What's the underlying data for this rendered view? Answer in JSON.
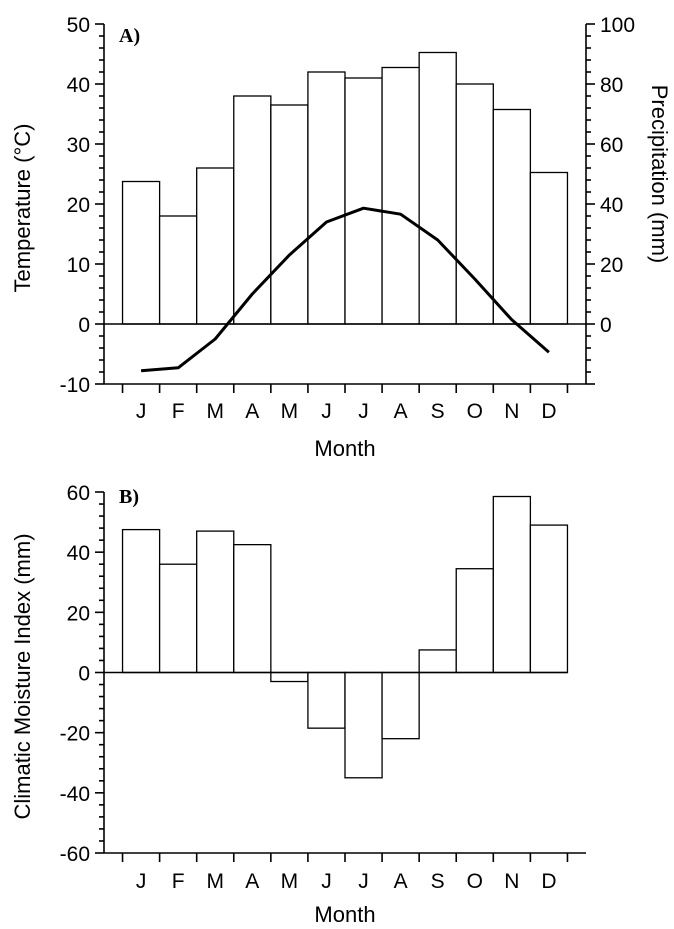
{
  "chart_data": [
    {
      "panel": "A)",
      "type": "bar+line",
      "categories": [
        "J",
        "F",
        "M",
        "A",
        "M",
        "J",
        "J",
        "A",
        "S",
        "O",
        "N",
        "D"
      ],
      "xlabel": "Month",
      "ylabel_left": "Temperature (°C)",
      "ylabel_right": "Precipitation (mm)",
      "ylim_left": [
        -10,
        50
      ],
      "ylim_right": [
        -20,
        100
      ],
      "yticks_left": [
        "-10",
        "0",
        "10",
        "20",
        "30",
        "40",
        "50"
      ],
      "yticks_right": [
        "0",
        "20",
        "40",
        "60",
        "80",
        "100"
      ],
      "precipitation": [
        47.5,
        36,
        52,
        76,
        73,
        84,
        82,
        85.5,
        90.5,
        80,
        71.5,
        50.5
      ],
      "temperature": [
        -7.8,
        -7.3,
        -2.5,
        5,
        11.5,
        17,
        19.3,
        18.3,
        14,
        7.5,
        0.7,
        -4.7
      ],
      "grid": false
    },
    {
      "panel": "B)",
      "type": "bar",
      "categories": [
        "J",
        "F",
        "M",
        "A",
        "M",
        "J",
        "J",
        "A",
        "S",
        "O",
        "N",
        "D"
      ],
      "xlabel": "Month",
      "ylabel": "Climatic Moisture Index (mm)",
      "ylim": [
        -60,
        60
      ],
      "yticks": [
        "-60",
        "-40",
        "-20",
        "0",
        "20",
        "40",
        "60"
      ],
      "values": [
        47.5,
        36,
        47,
        42.5,
        -3,
        -18.5,
        -35,
        -22,
        7.5,
        34.5,
        58.5,
        49
      ],
      "grid": false
    }
  ]
}
